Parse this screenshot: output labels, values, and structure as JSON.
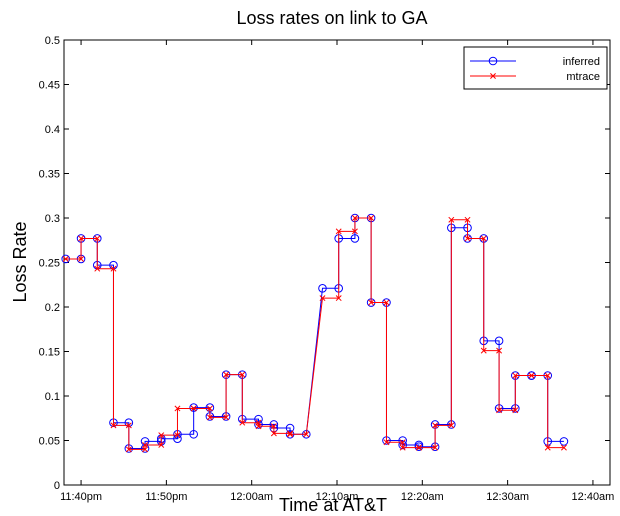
{
  "chart_data": {
    "type": "line",
    "title": "Loss rates on link to GA",
    "xlabel": "Time at AT&T",
    "ylabel": "Loss Rate",
    "xlim": [
      -2,
      62
    ],
    "ylim": [
      0,
      0.5
    ],
    "x_ticks": [
      {
        "value": 0,
        "label": "11:40pm"
      },
      {
        "value": 10,
        "label": "11:50pm"
      },
      {
        "value": 20,
        "label": "12:00am"
      },
      {
        "value": 30,
        "label": "12:10am"
      },
      {
        "value": 40,
        "label": "12:20am"
      },
      {
        "value": 50,
        "label": "12:30am"
      },
      {
        "value": 60,
        "label": "12:40am"
      }
    ],
    "y_ticks": [
      {
        "value": 0,
        "label": "0"
      },
      {
        "value": 0.05,
        "label": "0.05"
      },
      {
        "value": 0.1,
        "label": "0.1"
      },
      {
        "value": 0.15,
        "label": "0.15"
      },
      {
        "value": 0.2,
        "label": "0.2"
      },
      {
        "value": 0.25,
        "label": "0.25"
      },
      {
        "value": 0.3,
        "label": "0.3"
      },
      {
        "value": 0.35,
        "label": "0.35"
      },
      {
        "value": 0.4,
        "label": "0.4"
      },
      {
        "value": 0.45,
        "label": "0.45"
      },
      {
        "value": 0.5,
        "label": "0.5"
      }
    ],
    "grid": false,
    "legend_position": "top-right",
    "series": [
      {
        "name": "inferred",
        "color": "#0000ff",
        "marker": "circle",
        "points": [
          [
            -1.8,
            0.254
          ],
          [
            0,
            0.254
          ],
          [
            0,
            0.277
          ],
          [
            1.9,
            0.277
          ],
          [
            1.9,
            0.247
          ],
          [
            3.8,
            0.247
          ],
          [
            3.8,
            0.07
          ],
          [
            5.6,
            0.07
          ],
          [
            5.6,
            0.041
          ],
          [
            7.5,
            0.041
          ],
          [
            7.5,
            0.049
          ],
          [
            9.4,
            0.049
          ],
          [
            9.4,
            0.052
          ],
          [
            11.3,
            0.052
          ],
          [
            11.3,
            0.057
          ],
          [
            13.2,
            0.057
          ],
          [
            13.2,
            0.087
          ],
          [
            15.1,
            0.087
          ],
          [
            15.1,
            0.077
          ],
          [
            17,
            0.077
          ],
          [
            17,
            0.124
          ],
          [
            18.9,
            0.124
          ],
          [
            18.9,
            0.074
          ],
          [
            20.8,
            0.074
          ],
          [
            20.8,
            0.068
          ],
          [
            22.6,
            0.068
          ],
          [
            22.6,
            0.064
          ],
          [
            24.5,
            0.064
          ],
          [
            24.5,
            0.057
          ],
          [
            26.4,
            0.057
          ],
          [
            28.3,
            0.221
          ],
          [
            30.2,
            0.221
          ],
          [
            30.2,
            0.277
          ],
          [
            32.1,
            0.277
          ],
          [
            32.1,
            0.3
          ],
          [
            34,
            0.3
          ],
          [
            34,
            0.205
          ],
          [
            35.8,
            0.205
          ],
          [
            35.8,
            0.05
          ],
          [
            37.7,
            0.05
          ],
          [
            37.7,
            0.045
          ],
          [
            39.6,
            0.045
          ],
          [
            39.6,
            0.043
          ],
          [
            41.5,
            0.043
          ],
          [
            41.5,
            0.068
          ],
          [
            43.4,
            0.068
          ],
          [
            43.4,
            0.289
          ],
          [
            45.3,
            0.289
          ],
          [
            45.3,
            0.277
          ],
          [
            47.2,
            0.277
          ],
          [
            47.2,
            0.162
          ],
          [
            49,
            0.162
          ],
          [
            49,
            0.086
          ],
          [
            50.9,
            0.086
          ],
          [
            50.9,
            0.123
          ],
          [
            52.8,
            0.123
          ],
          [
            52.8,
            0.123
          ],
          [
            54.7,
            0.123
          ],
          [
            54.7,
            0.049
          ],
          [
            56.6,
            0.049
          ]
        ]
      },
      {
        "name": "mtrace",
        "color": "#ff0000",
        "marker": "x",
        "points": [
          [
            -1.8,
            0.254
          ],
          [
            0,
            0.254
          ],
          [
            0,
            0.277
          ],
          [
            1.9,
            0.277
          ],
          [
            1.9,
            0.243
          ],
          [
            3.8,
            0.243
          ],
          [
            3.8,
            0.067
          ],
          [
            5.6,
            0.067
          ],
          [
            5.6,
            0.04
          ],
          [
            7.5,
            0.04
          ],
          [
            7.5,
            0.045
          ],
          [
            9.4,
            0.045
          ],
          [
            9.4,
            0.056
          ],
          [
            11.3,
            0.056
          ],
          [
            11.3,
            0.086
          ],
          [
            13.2,
            0.086
          ],
          [
            13.2,
            0.086
          ],
          [
            15.1,
            0.086
          ],
          [
            15.1,
            0.076
          ],
          [
            17,
            0.076
          ],
          [
            17,
            0.124
          ],
          [
            18.9,
            0.124
          ],
          [
            18.9,
            0.07
          ],
          [
            20.8,
            0.07
          ],
          [
            20.8,
            0.066
          ],
          [
            22.6,
            0.066
          ],
          [
            22.6,
            0.058
          ],
          [
            24.5,
            0.058
          ],
          [
            24.5,
            0.057
          ],
          [
            26.4,
            0.057
          ],
          [
            28.3,
            0.21
          ],
          [
            30.2,
            0.21
          ],
          [
            30.2,
            0.285
          ],
          [
            32.1,
            0.285
          ],
          [
            32.1,
            0.3
          ],
          [
            34,
            0.3
          ],
          [
            34,
            0.205
          ],
          [
            35.8,
            0.205
          ],
          [
            35.8,
            0.048
          ],
          [
            37.7,
            0.048
          ],
          [
            37.7,
            0.042
          ],
          [
            39.6,
            0.042
          ],
          [
            39.6,
            0.042
          ],
          [
            41.5,
            0.042
          ],
          [
            41.5,
            0.067
          ],
          [
            43.4,
            0.067
          ],
          [
            43.4,
            0.298
          ],
          [
            45.3,
            0.298
          ],
          [
            45.3,
            0.277
          ],
          [
            47.2,
            0.277
          ],
          [
            47.2,
            0.151
          ],
          [
            49,
            0.151
          ],
          [
            49,
            0.084
          ],
          [
            50.9,
            0.084
          ],
          [
            50.9,
            0.123
          ],
          [
            52.8,
            0.123
          ],
          [
            52.8,
            0.123
          ],
          [
            54.7,
            0.123
          ],
          [
            54.7,
            0.042
          ],
          [
            56.6,
            0.042
          ]
        ]
      }
    ]
  }
}
